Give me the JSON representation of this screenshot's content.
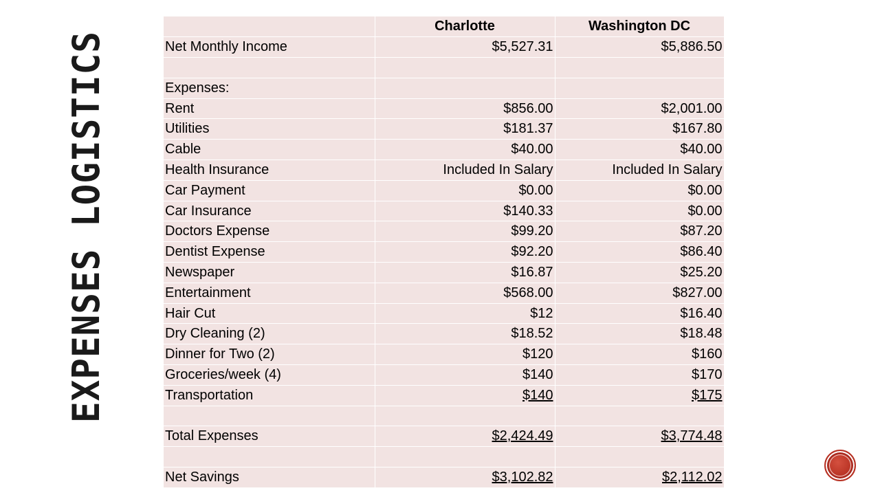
{
  "slide": {
    "title": "Expenses Logistics",
    "accent_color": "#c0392b",
    "table_fill_color": "#f2e3e2"
  },
  "table": {
    "headers": [
      "",
      "Charlotte",
      "Washington DC"
    ],
    "rows": [
      {
        "label": "Net Monthly Income",
        "charlotte": "$5,527.31",
        "dc": "$5,886.50"
      },
      {
        "label": "",
        "charlotte": "",
        "dc": ""
      },
      {
        "label": "Expenses:",
        "charlotte": "",
        "dc": ""
      },
      {
        "label": "Rent",
        "charlotte": "$856.00",
        "dc": "$2,001.00"
      },
      {
        "label": "Utilities",
        "charlotte": "$181.37",
        "dc": "$167.80"
      },
      {
        "label": "Cable",
        "charlotte": "$40.00",
        "dc": "$40.00"
      },
      {
        "label": "Health Insurance",
        "charlotte": "Included In Salary",
        "dc": "Included In Salary"
      },
      {
        "label": "Car Payment",
        "charlotte": "$0.00",
        "dc": "$0.00"
      },
      {
        "label": "Car Insurance",
        "charlotte": "$140.33",
        "dc": "$0.00"
      },
      {
        "label": "Doctors Expense",
        "charlotte": "$99.20",
        "dc": "$87.20"
      },
      {
        "label": "Dentist Expense",
        "charlotte": "$92.20",
        "dc": "$86.40"
      },
      {
        "label": "Newspaper",
        "charlotte": "$16.87",
        "dc": "$25.20"
      },
      {
        "label": "Entertainment",
        "charlotte": "$568.00",
        "dc": "$827.00"
      },
      {
        "label": "Hair Cut",
        "charlotte": "$12",
        "dc": "$16.40"
      },
      {
        "label": "Dry Cleaning (2)",
        "charlotte": "$18.52",
        "dc": "$18.48"
      },
      {
        "label": "Dinner for Two (2)",
        "charlotte": "$120",
        "dc": "$160"
      },
      {
        "label": "Groceries/week (4)",
        "charlotte": "$140",
        "dc": "$170"
      },
      {
        "label": "Transportation",
        "charlotte": "$140",
        "dc": "$175",
        "underline": true
      },
      {
        "label": "",
        "charlotte": "",
        "dc": ""
      },
      {
        "label": "Total Expenses",
        "charlotte": "$2,424.49",
        "dc": "$3,774.48",
        "underline": true
      },
      {
        "label": "",
        "charlotte": "",
        "dc": ""
      },
      {
        "label": "Net Savings",
        "charlotte": "$3,102.82",
        "dc": "$2,112.02",
        "underline": true
      }
    ]
  }
}
